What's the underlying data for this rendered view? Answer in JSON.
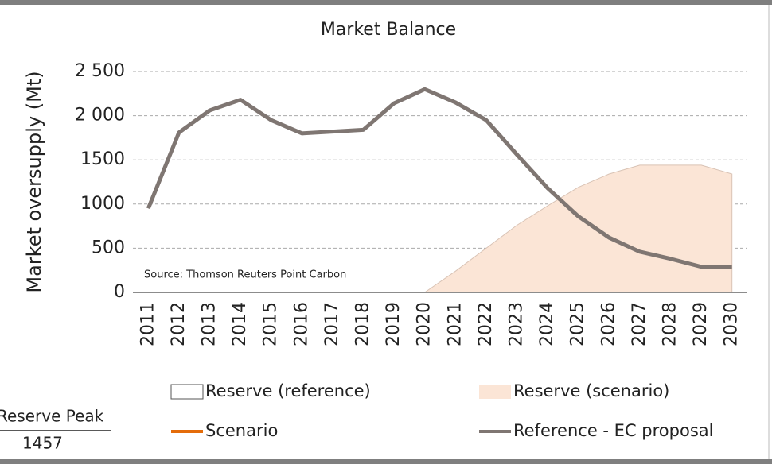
{
  "chart_data": {
    "type": "line",
    "title": "Market Balance",
    "y_label": "Market oversupply (Mt)",
    "annotation": "Source: Thomson Reuters Point Carbon",
    "categories": [
      "2011",
      "2012",
      "2013",
      "2014",
      "2015",
      "2016",
      "2017",
      "2018",
      "2019",
      "2020",
      "2021",
      "2022",
      "2023",
      "2024",
      "2025",
      "2026",
      "2027",
      "2028",
      "2029",
      "2030"
    ],
    "series": [
      {
        "name": "Reserve (reference)",
        "kind": "area",
        "color": "#ffffff",
        "values": [
          null,
          null,
          0,
          0,
          0,
          0,
          0,
          0,
          0,
          0,
          0,
          0,
          0,
          0,
          0,
          0,
          0,
          0,
          0,
          0
        ]
      },
      {
        "name": "Reserve (scenario)",
        "kind": "area",
        "color": "#fbe5d6",
        "values": [
          null,
          null,
          null,
          null,
          null,
          null,
          null,
          null,
          null,
          0,
          240,
          500,
          760,
          980,
          1190,
          1340,
          1440,
          1440,
          1440,
          1340
        ]
      },
      {
        "name": "Scenario",
        "kind": "line",
        "color": "#e46c0a",
        "values": [
          null,
          null,
          null,
          null,
          null,
          null,
          null,
          null,
          null,
          null,
          null,
          null,
          null,
          null,
          null,
          null,
          null,
          null,
          null,
          null
        ]
      },
      {
        "name": "Reference - EC proposal",
        "kind": "line",
        "color": "#7f7672",
        "values": [
          950,
          1810,
          2060,
          2180,
          1950,
          1800,
          1820,
          1840,
          2140,
          2300,
          2150,
          1950,
          1560,
          1180,
          860,
          620,
          460,
          380,
          290,
          290
        ]
      }
    ],
    "ylim": [
      0,
      2500
    ],
    "yticks": [
      0,
      500,
      1000,
      1500,
      {
        "value": 2000,
        "label": "2 000"
      },
      {
        "value": 2500,
        "label": "2 500"
      }
    ],
    "grid": true,
    "legend": "bottom",
    "reserve_peak": {
      "label": "Reserve Peak",
      "value": "1457"
    }
  }
}
